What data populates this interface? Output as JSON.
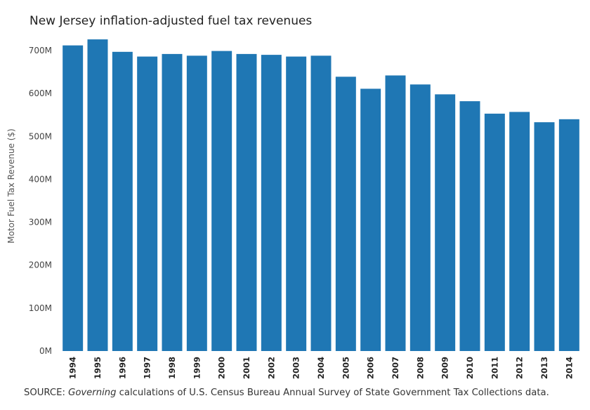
{
  "chart_data": {
    "type": "bar",
    "title": "New Jersey inflation-adjusted fuel tax revenues",
    "xlabel": "",
    "ylabel": "Motor Fuel Tax Revenue ($)",
    "ylim": [
      0,
      700
    ],
    "yticks": [
      0,
      100,
      200,
      300,
      400,
      500,
      600,
      700
    ],
    "ytick_labels": [
      "0M",
      "100M",
      "200M",
      "300M",
      "400M",
      "500M",
      "600M",
      "700M"
    ],
    "categories": [
      "1994",
      "1995",
      "1996",
      "1997",
      "1998",
      "1999",
      "2000",
      "2001",
      "2002",
      "2003",
      "2004",
      "2005",
      "2006",
      "2007",
      "2008",
      "2009",
      "2010",
      "2011",
      "2012",
      "2013",
      "2014"
    ],
    "values": [
      712,
      726,
      697,
      686,
      692,
      688,
      699,
      692,
      690,
      686,
      688,
      639,
      611,
      642,
      621,
      598,
      582,
      553,
      557,
      533,
      540
    ],
    "bar_color": "#1f77b4",
    "grid": false
  },
  "source": {
    "prefix": "SOURCE: ",
    "italic": "Governing",
    "suffix": " calculations of U.S. Census Bureau Annual Survey of State Government Tax Collections data."
  }
}
